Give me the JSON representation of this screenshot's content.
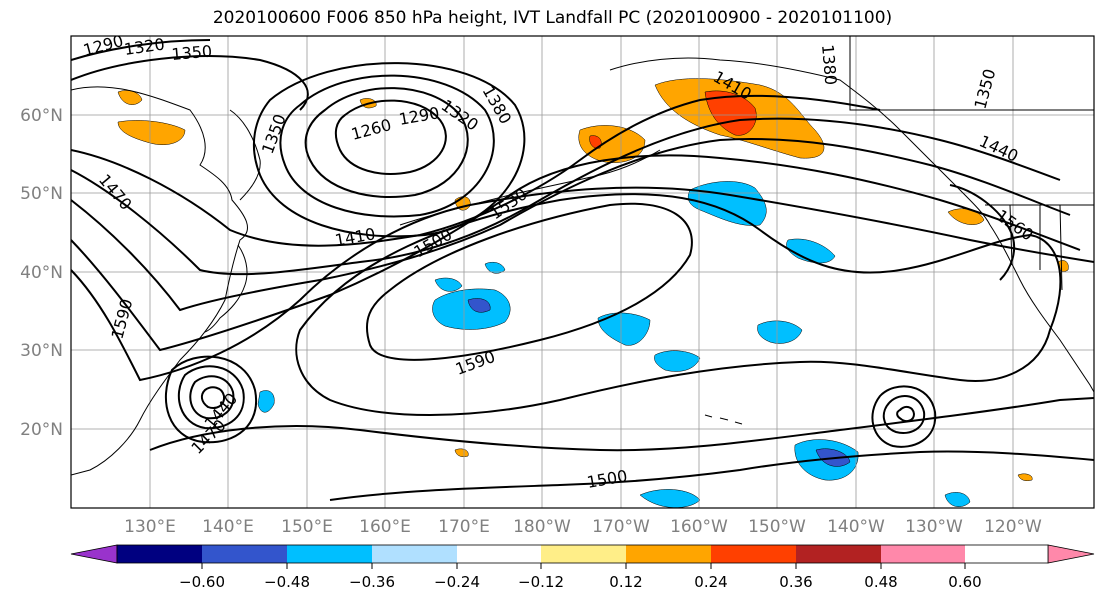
{
  "title": "2020100600 F006 850 hPa height, IVT Landfall PC (2020100900 - 2020101100)",
  "lat_labels": [
    "60°N",
    "50°N",
    "40°N",
    "30°N",
    "20°N"
  ],
  "lon_labels": [
    "130°E",
    "140°E",
    "150°E",
    "160°E",
    "170°E",
    "180°W",
    "170°W",
    "160°W",
    "150°W",
    "140°W",
    "130°W",
    "120°W"
  ],
  "contour_labels": [
    "1290",
    "1320",
    "1350",
    "1380",
    "1410",
    "1350",
    "1260",
    "1290",
    "1320",
    "1380",
    "1470",
    "1410",
    "1500",
    "1530",
    "1590",
    "1590",
    "1440",
    "1470",
    "1500",
    "1380",
    "1350",
    "1440",
    "1560"
  ],
  "colorbar": {
    "colors": [
      "#9933cc",
      "#000080",
      "#3355cc",
      "#00bfff",
      "#b0e0ff",
      "#ffffff",
      "#ffee88",
      "#ffa500",
      "#ff4000",
      "#b22222",
      "#ff88aa"
    ],
    "tick_labels": [
      "−0.60",
      "−0.48",
      "−0.36",
      "−0.24",
      "−0.12",
      "0.12",
      "0.24",
      "0.36",
      "0.48",
      "0.60"
    ]
  }
}
